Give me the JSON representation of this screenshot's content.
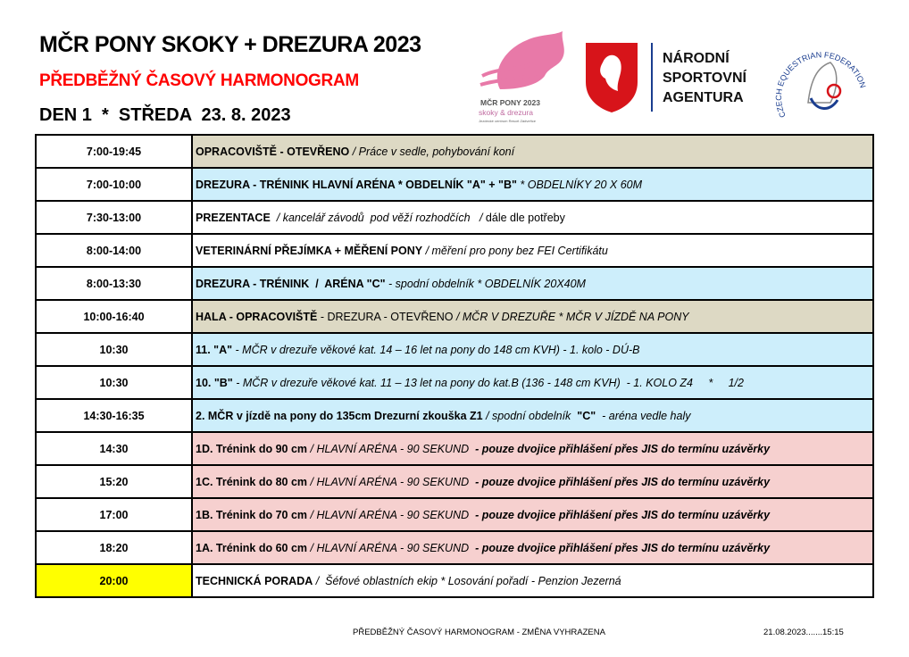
{
  "header": {
    "title": "MČR PONY SKOKY + DREZURA 2023",
    "subtitle": "PŘEDBĚŽNÝ ČASOVÝ HARMONOGRAM",
    "day": "DEN 1  *  STŘEDA  23. 8. 2023"
  },
  "logos": {
    "event_logo": {
      "line1": "MČR PONY 2023",
      "line2": "skoky & drezura",
      "line3": "Jezdecké centrum Resort Zádveřice"
    },
    "nsa": [
      "NÁRODNÍ",
      "SPORTOVNÍ",
      "AGENTURA"
    ],
    "federation": "CZECH EQUESTRIAN FEDERATION"
  },
  "colors": {
    "tan": "#ddd9c4",
    "blue": "#cdeefb",
    "pink": "#f6d0cf",
    "white": "#ffffff",
    "yellow": "#ffff00",
    "red": "#ff0000"
  },
  "rows": [
    {
      "time": "7:00-19:45",
      "bg": "tan",
      "segments": [
        {
          "t": "OPRACOVIŠTĚ - OTEVŘENO",
          "s": "b"
        },
        {
          "t": " / Práce v sedle, pohybování koní",
          "s": "i"
        }
      ]
    },
    {
      "time": "7:00-10:00",
      "bg": "blue",
      "segments": [
        {
          "t": "DREZURA - TRÉNINK HLAVNÍ ARÉNA * OBDELNÍK \"A\" + \"B\"",
          "s": "b"
        },
        {
          "t": " * OBDELNÍKY 20 X 60M",
          "s": "i"
        }
      ]
    },
    {
      "time": "7:30-13:00",
      "bg": "white",
      "segments": [
        {
          "t": "PREZENTACE",
          "s": "b"
        },
        {
          "t": "  / kancelář závodů  pod věží rozhodčích   / ",
          "s": "i"
        },
        {
          "t": "dále dle potřeby",
          "s": "n"
        }
      ]
    },
    {
      "time": "8:00-14:00",
      "bg": "white",
      "segments": [
        {
          "t": "VETERINÁRNÍ PŘEJÍMKA + MĚŘENÍ PONY",
          "s": "b"
        },
        {
          "t": " / měření pro pony bez FEI Certifikátu",
          "s": "i"
        }
      ]
    },
    {
      "time": "8:00-13:30",
      "bg": "blue",
      "segments": [
        {
          "t": "DREZURA - TRÉNINK  /  ARÉNA \"C\"",
          "s": "b"
        },
        {
          "t": " - spodní obdelník * OBDELNÍK 20X40M",
          "s": "i"
        }
      ]
    },
    {
      "time": "10:00-16:40",
      "bg": "tan",
      "segments": [
        {
          "t": "HALA - OPRACOVIŠTĚ",
          "s": "b"
        },
        {
          "t": " - DREZURA - OTEVŘENO ",
          "s": "n"
        },
        {
          "t": "/ MČR V DREZUŘE * MČR V JÍZDĚ NA PONY",
          "s": "i"
        }
      ]
    },
    {
      "time": "10:30",
      "bg": "blue",
      "segments": [
        {
          "t": "11. \"A\"",
          "s": "b"
        },
        {
          "t": " - MČR v drezuře věkové kat. 14 – 16 let na pony do 148 cm KVH) - 1. kolo - DÚ-B",
          "s": "i"
        }
      ]
    },
    {
      "time": "10:30",
      "bg": "blue",
      "segments": [
        {
          "t": "10. \"B\"",
          "s": "b"
        },
        {
          "t": " - MČR v drezuře věkové kat. 11 – 13 let na pony do kat.B (136 - 148 cm KVH)  - 1. KOLO Z4     *     1/2",
          "s": "i"
        }
      ]
    },
    {
      "time": "14:30-16:35",
      "bg": "blue",
      "segments": [
        {
          "t": "2. MČR v jízdě na pony do 135cm Drezurní zkouška Z1",
          "s": "b"
        },
        {
          "t": " / spodní obdelník  ",
          "s": "i"
        },
        {
          "t": "\"C\"",
          "s": "b"
        },
        {
          "t": "  - aréna vedle haly",
          "s": "i"
        }
      ]
    },
    {
      "time": "14:30",
      "bg": "pink",
      "segments": [
        {
          "t": "1D. Trénink do 90 cm",
          "s": "b"
        },
        {
          "t": " / HLAVNÍ ARÉNA - 90 SEKUND  ",
          "s": "i"
        },
        {
          "t": "- pouze dvojice přihlášení přes JIS do termínu uzávěrky",
          "s": "bi"
        }
      ]
    },
    {
      "time": "15:20",
      "bg": "pink",
      "segments": [
        {
          "t": "1C. Trénink do 80 cm",
          "s": "b"
        },
        {
          "t": " / HLAVNÍ ARÉNA - 90 SEKUND  ",
          "s": "i"
        },
        {
          "t": "- pouze dvojice přihlášení přes JIS do termínu uzávěrky",
          "s": "bi"
        }
      ]
    },
    {
      "time": "17:00",
      "bg": "pink",
      "segments": [
        {
          "t": "1B. Trénink do 70 cm",
          "s": "b"
        },
        {
          "t": " / HLAVNÍ ARÉNA - 90 SEKUND  ",
          "s": "i"
        },
        {
          "t": "- pouze dvojice přihlášení přes JIS do termínu uzávěrky",
          "s": "bi"
        }
      ]
    },
    {
      "time": "18:20",
      "bg": "pink",
      "segments": [
        {
          "t": "1A. Trénink do 60 cm",
          "s": "b"
        },
        {
          "t": " / HLAVNÍ ARÉNA - 90 SEKUND  ",
          "s": "i"
        },
        {
          "t": "- pouze dvojice přihlášení přes JIS do termínu uzávěrky",
          "s": "bi"
        }
      ]
    },
    {
      "time": "20:00",
      "bg": "white",
      "time_bg": "yellow",
      "segments": [
        {
          "t": "TECHNICKÁ PORADA",
          "s": "b"
        },
        {
          "t": " /  Šéfové oblastních ekip * Losování pořadí - Penzion Jezerná",
          "s": "i"
        }
      ]
    }
  ],
  "footer": {
    "note": "PŘEDBĚŽNÝ ČASOVÝ HARMONOGRAM - ZMĚNA VYHRAZENA",
    "stamp": "21.08.2023.......15:15"
  }
}
